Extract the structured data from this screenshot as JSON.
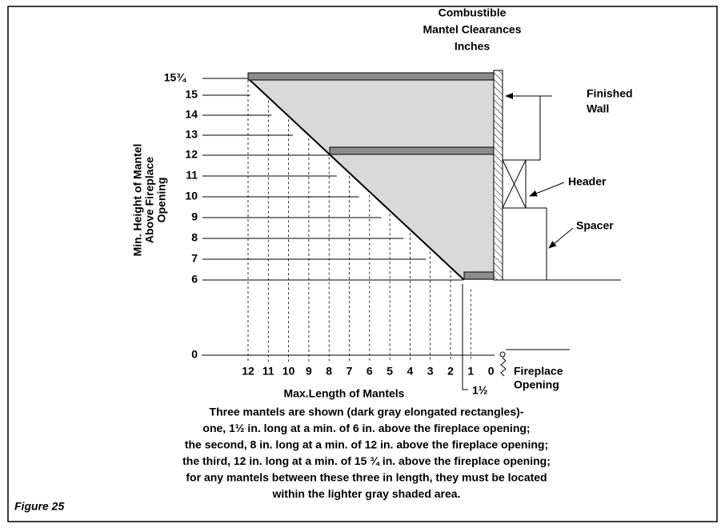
{
  "title": [
    "Combustible",
    "Mantel Clearances",
    "Inches"
  ],
  "y_axis_label": [
    "Min. Height of Mantel",
    "Above Fireplace",
    "Opening"
  ],
  "y_labels": [
    "15¾",
    "15",
    "14",
    "13",
    "12",
    "11",
    "10",
    "9",
    "8",
    "7",
    "6",
    "0"
  ],
  "x_labels": [
    "12",
    "11",
    "10",
    "9",
    "8",
    "7",
    "6",
    "5",
    "4",
    "3",
    "2",
    "1",
    "0"
  ],
  "x_axis_label": "Max.Length of Mantels",
  "small_mantel_label": "1½",
  "callouts": {
    "finished_wall": [
      "Finished",
      "Wall"
    ],
    "header": "Header",
    "spacer": "Spacer",
    "fireplace_opening": [
      "Fireplace",
      "Opening"
    ]
  },
  "caption": [
    "Three mantels are shown (dark gray elongated rectangles)-",
    "one, 1½ in. long at a min. of 6 in. above the fireplace opening;",
    "the second, 8 in. long at a min. of 12 in. above the fireplace opening;",
    "the third, 12 in. long at a min. of 15 ¾  in. above the fireplace opening;",
    "for any mantels between these three in length, they must be located",
    "within the lighter gray shaded area."
  ],
  "figure_label": "Figure 25"
}
